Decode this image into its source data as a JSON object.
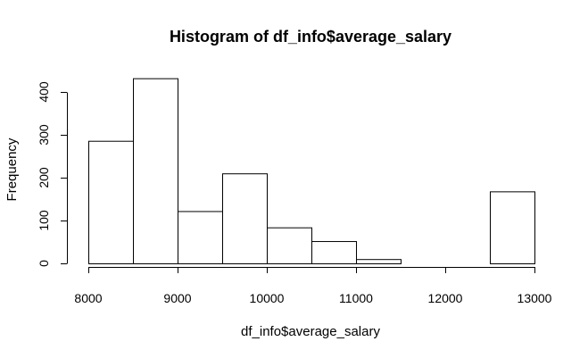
{
  "chart_data": {
    "type": "bar",
    "title": "Histogram of df_info$average_salary",
    "xlabel": "df_info$average_salary",
    "ylabel": "Frequency",
    "bins": [
      {
        "x0": 8000,
        "x1": 8500,
        "count": 286
      },
      {
        "x0": 8500,
        "x1": 9000,
        "count": 432
      },
      {
        "x0": 9000,
        "x1": 9500,
        "count": 122
      },
      {
        "x0": 9500,
        "x1": 10000,
        "count": 210
      },
      {
        "x0": 10000,
        "x1": 10500,
        "count": 84
      },
      {
        "x0": 10500,
        "x1": 11000,
        "count": 52
      },
      {
        "x0": 11000,
        "x1": 11500,
        "count": 10
      },
      {
        "x0": 11500,
        "x1": 12000,
        "count": 0
      },
      {
        "x0": 12000,
        "x1": 12500,
        "count": 0
      },
      {
        "x0": 12500,
        "x1": 13000,
        "count": 168
      }
    ],
    "xticks": [
      8000,
      9000,
      10000,
      11000,
      12000,
      13000
    ],
    "yticks": [
      0,
      100,
      200,
      300,
      400
    ],
    "xlim": [
      8000,
      13000
    ],
    "ylim": [
      0,
      400
    ],
    "grid": false
  }
}
